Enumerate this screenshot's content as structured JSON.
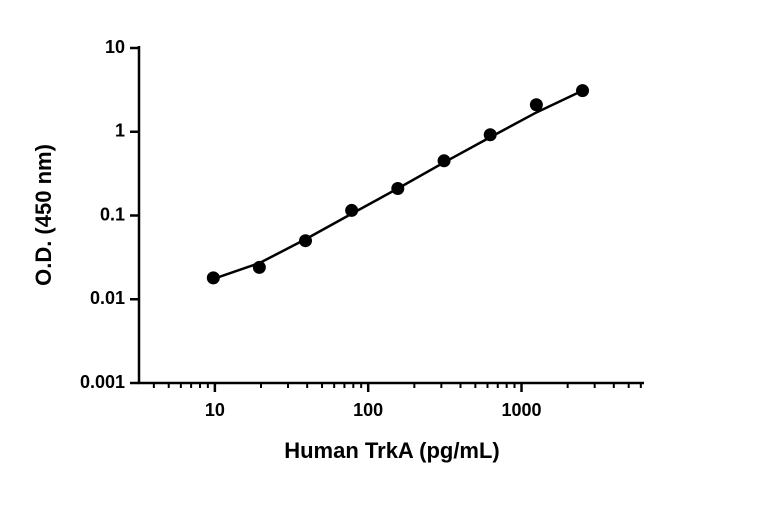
{
  "chart_data": {
    "type": "scatter",
    "xlabel": "Human TrkA (pg/mL)",
    "ylabel": "O.D. (450 nm)",
    "x": [
      9.77,
      19.5,
      39,
      78,
      156,
      312.5,
      625,
      1250,
      2500
    ],
    "values": [
      0.018,
      0.024,
      0.05,
      0.115,
      0.21,
      0.45,
      0.92,
      2.1,
      3.1
    ],
    "color": "#000000",
    "fit": {
      "x": [
        9.77,
        19.5,
        39,
        78,
        156,
        312.5,
        625,
        1250,
        2500
      ],
      "values": [
        0.0175,
        0.027,
        0.052,
        0.105,
        0.21,
        0.43,
        0.86,
        1.7,
        3.1
      ]
    },
    "xscale": "log",
    "yscale": "log",
    "xlim": [
      3.2,
      6200
    ],
    "ylim": [
      0.001,
      10
    ],
    "xticks": [
      10,
      100,
      1000
    ],
    "xminorticks": [
      4,
      5,
      6,
      7,
      8,
      9,
      20,
      30,
      40,
      50,
      60,
      70,
      80,
      90,
      200,
      300,
      400,
      500,
      600,
      700,
      800,
      900,
      2000,
      3000,
      4000,
      5000,
      6000
    ],
    "yticks": [
      0.001,
      0.01,
      0.1,
      1,
      10
    ]
  }
}
